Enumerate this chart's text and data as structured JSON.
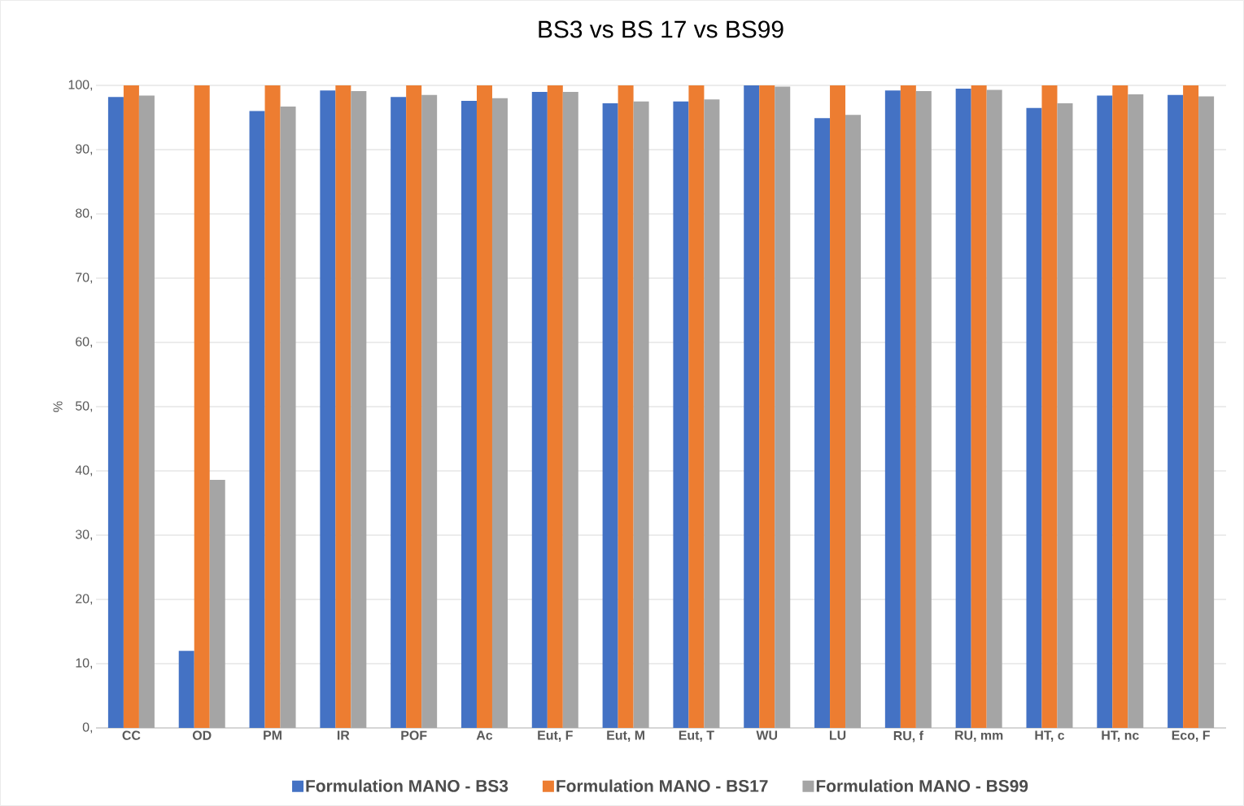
{
  "chart_data": {
    "type": "bar",
    "title": "BS3 vs BS 17 vs BS99",
    "ylabel": "%",
    "categories": [
      "CC",
      "OD",
      "PM",
      "IR",
      "POF",
      "Ac",
      "Eut, F",
      "Eut, M",
      "Eut, T",
      "WU",
      "LU",
      "RU, f",
      "RU, mm",
      "HT, c",
      "HT, nc",
      "Eco, F"
    ],
    "series": [
      {
        "name": "Formulation MANO - BS3",
        "color": "#4472c4",
        "values": [
          98.2,
          12,
          96,
          99.2,
          98.2,
          97.6,
          99,
          97.2,
          97.5,
          100,
          94.9,
          99.2,
          99.5,
          96.5,
          98.4,
          98.5
        ]
      },
      {
        "name": "Formulation MANO - BS17",
        "color": "#ed7d31",
        "values": [
          100,
          100,
          100,
          100,
          100,
          100,
          100,
          100,
          100,
          100,
          100,
          100,
          100,
          100,
          100,
          100
        ]
      },
      {
        "name": "Formulation MANO - BS99",
        "color": "#a5a5a5",
        "values": [
          98.4,
          38.6,
          96.7,
          99.1,
          98.5,
          98,
          99,
          97.5,
          97.8,
          99.8,
          95.4,
          99.1,
          99.3,
          97.2,
          98.6,
          98.3
        ]
      }
    ],
    "ylim": [
      0,
      100
    ],
    "yticks": [
      {
        "value": 0,
        "label": "0,"
      },
      {
        "value": 10,
        "label": "10,"
      },
      {
        "value": 20,
        "label": "20,"
      },
      {
        "value": 30,
        "label": "30,"
      },
      {
        "value": 40,
        "label": "40,"
      },
      {
        "value": 50,
        "label": "50,"
      },
      {
        "value": 60,
        "label": "60,"
      },
      {
        "value": 70,
        "label": "70,"
      },
      {
        "value": 80,
        "label": "80,"
      },
      {
        "value": 90,
        "label": "90,"
      },
      {
        "value": 100,
        "label": "100,"
      }
    ],
    "grid": "y",
    "legend": "bottom"
  }
}
